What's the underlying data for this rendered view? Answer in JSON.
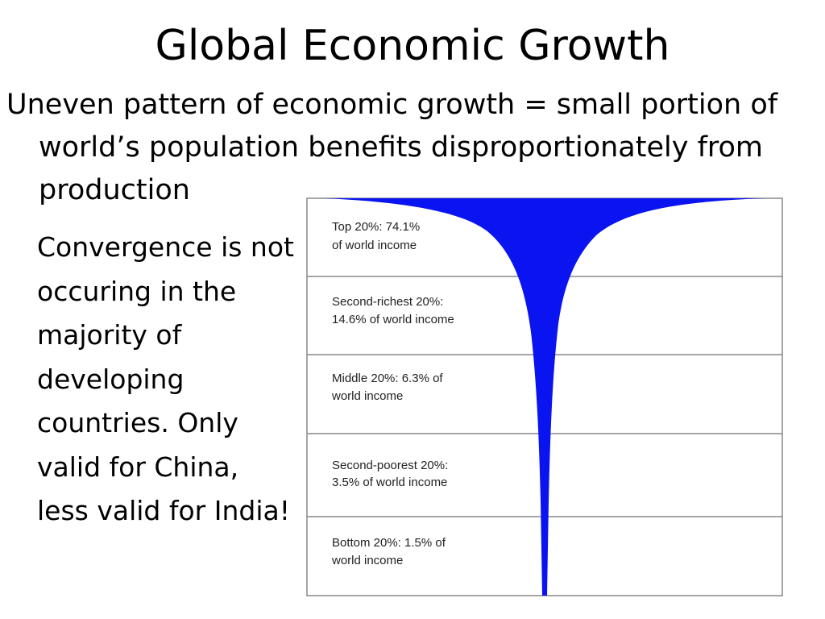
{
  "slide": {
    "title": "Global Economic Growth",
    "bullet": "Uneven pattern of economic growth = small portion of world’s population benefits disproportionately from production",
    "side_text": "Convergence  is not occuring in the majority of developing countries. Only valid for China, less valid for India!"
  },
  "figure": {
    "fill_color": "#0a14f0",
    "bands": [
      {
        "line1": "Top 20%: 74.1%",
        "line2": "of world income",
        "share": 74.1
      },
      {
        "line1": "Second-richest 20%:",
        "line2": "14.6% of world income",
        "share": 14.6
      },
      {
        "line1": "Middle 20%: 6.3% of",
        "line2": "world income",
        "share": 6.3
      },
      {
        "line1": "Second-poorest 20%:",
        "line2": "3.5% of world income",
        "share": 3.5
      },
      {
        "line1": "Bottom 20%: 1.5% of",
        "line2": "world income",
        "share": 1.5
      }
    ]
  }
}
